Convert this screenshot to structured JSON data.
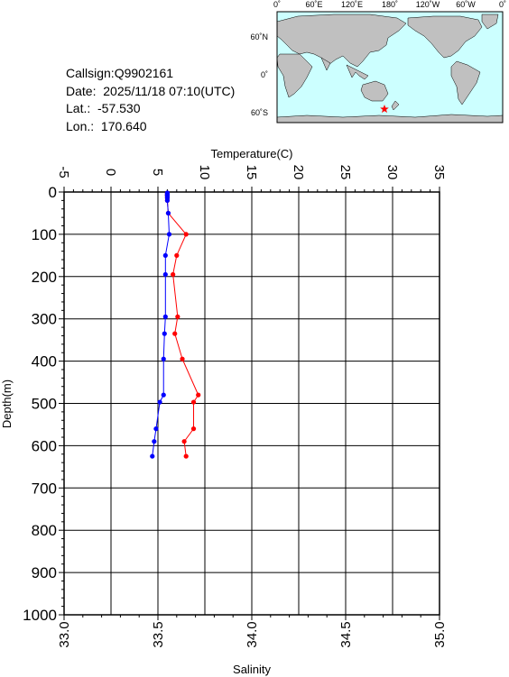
{
  "info": {
    "callsign": "Callsign:Q9902161",
    "date": "Date:  2025/11/18 07:10(UTC)",
    "lat": "Lat.:  -57.530",
    "lon": "Lon.:  170.640"
  },
  "map": {
    "top_labels": [
      "0˚",
      "60˚E",
      "120˚E",
      "180˚",
      "120˚W",
      "60˚W",
      "0˚"
    ],
    "left_labels": [
      "60˚N",
      "0˚",
      "60˚S"
    ],
    "marker": {
      "lat": -57.53,
      "lon": 170.64,
      "color": "#ff0000",
      "icon": "star-icon"
    },
    "ocean_color": "#ccffff",
    "land_color": "#c0c0c0"
  },
  "chart_data": {
    "type": "line",
    "title": "",
    "ylabel": "Depth(m)",
    "ylim": [
      0,
      1000
    ],
    "y_ticks": [
      "0",
      "100",
      "200",
      "300",
      "400",
      "500",
      "600",
      "700",
      "800",
      "900",
      "1000"
    ],
    "temperature_axis": {
      "label": "Temperature(C)",
      "lim": [
        -5,
        35
      ],
      "ticks": [
        "-5",
        "0",
        "5",
        "10",
        "15",
        "20",
        "25",
        "30",
        "35"
      ]
    },
    "salinity_axis": {
      "label": "Salinity",
      "lim": [
        33.0,
        35.0
      ],
      "ticks": [
        "33.0",
        "33.5",
        "34.0",
        "34.5",
        "35.0"
      ]
    },
    "grid": true,
    "series": [
      {
        "name": "Temperature(C)",
        "axis": "temperature",
        "color": "#ff0000",
        "points": [
          {
            "x": 6.0,
            "y": 2
          },
          {
            "x": 6.0,
            "y": 4
          },
          {
            "x": 6.0,
            "y": 6
          },
          {
            "x": 6.0,
            "y": 8
          },
          {
            "x": 6.0,
            "y": 10
          },
          {
            "x": 6.0,
            "y": 14
          },
          {
            "x": 6.0,
            "y": 20
          },
          {
            "x": 6.1,
            "y": 50
          },
          {
            "x": 8.0,
            "y": 100
          },
          {
            "x": 7.0,
            "y": 150
          },
          {
            "x": 6.6,
            "y": 195
          },
          {
            "x": 7.1,
            "y": 295
          },
          {
            "x": 6.8,
            "y": 335
          },
          {
            "x": 7.6,
            "y": 395
          },
          {
            "x": 9.3,
            "y": 480
          },
          {
            "x": 8.8,
            "y": 497
          },
          {
            "x": 8.8,
            "y": 560
          },
          {
            "x": 7.8,
            "y": 590
          },
          {
            "x": 8.0,
            "y": 625
          }
        ]
      },
      {
        "name": "Salinity",
        "axis": "salinity",
        "color": "#0000ff",
        "points": [
          {
            "x": 33.55,
            "y": 2
          },
          {
            "x": 33.55,
            "y": 4
          },
          {
            "x": 33.55,
            "y": 6
          },
          {
            "x": 33.55,
            "y": 8
          },
          {
            "x": 33.55,
            "y": 10
          },
          {
            "x": 33.55,
            "y": 14
          },
          {
            "x": 33.55,
            "y": 20
          },
          {
            "x": 33.555,
            "y": 50
          },
          {
            "x": 33.56,
            "y": 100
          },
          {
            "x": 33.54,
            "y": 150
          },
          {
            "x": 33.54,
            "y": 195
          },
          {
            "x": 33.54,
            "y": 295
          },
          {
            "x": 33.535,
            "y": 335
          },
          {
            "x": 33.53,
            "y": 395
          },
          {
            "x": 33.53,
            "y": 480
          },
          {
            "x": 33.51,
            "y": 497
          },
          {
            "x": 33.49,
            "y": 560
          },
          {
            "x": 33.48,
            "y": 590
          },
          {
            "x": 33.47,
            "y": 625
          }
        ]
      }
    ]
  }
}
